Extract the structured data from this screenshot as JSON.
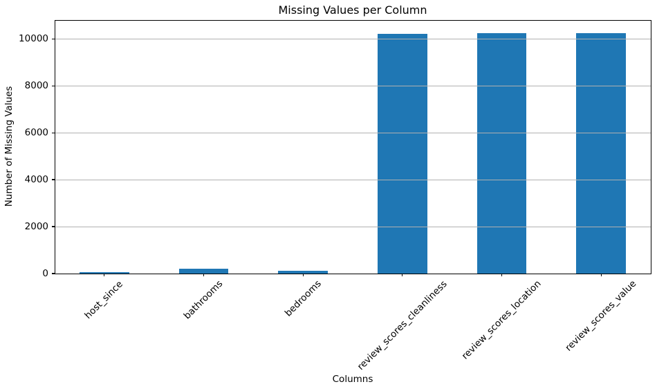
{
  "chart_data": {
    "type": "bar",
    "title": "Missing Values per Column",
    "xlabel": "Columns",
    "ylabel": "Number of Missing Values",
    "categories": [
      "host_since",
      "bathrooms",
      "bedrooms",
      "review_scores_cleanliness",
      "review_scores_location",
      "review_scores_value"
    ],
    "values": [
      65,
      195,
      120,
      10210,
      10250,
      10255
    ],
    "yticks": [
      0,
      2000,
      4000,
      6000,
      8000,
      10000
    ],
    "ytick_labels": [
      "0",
      "2000",
      "4000",
      "6000",
      "8000",
      "10000"
    ],
    "ylim": [
      0,
      10800
    ],
    "bar_color": "#1f77b4",
    "bar_width_fraction": 0.5,
    "grid": {
      "axis": "y",
      "color": "#b0b0b0",
      "above_bars": true
    },
    "xtick_rotation": 45,
    "legend_position": "none",
    "background_color": "#ffffff"
  }
}
